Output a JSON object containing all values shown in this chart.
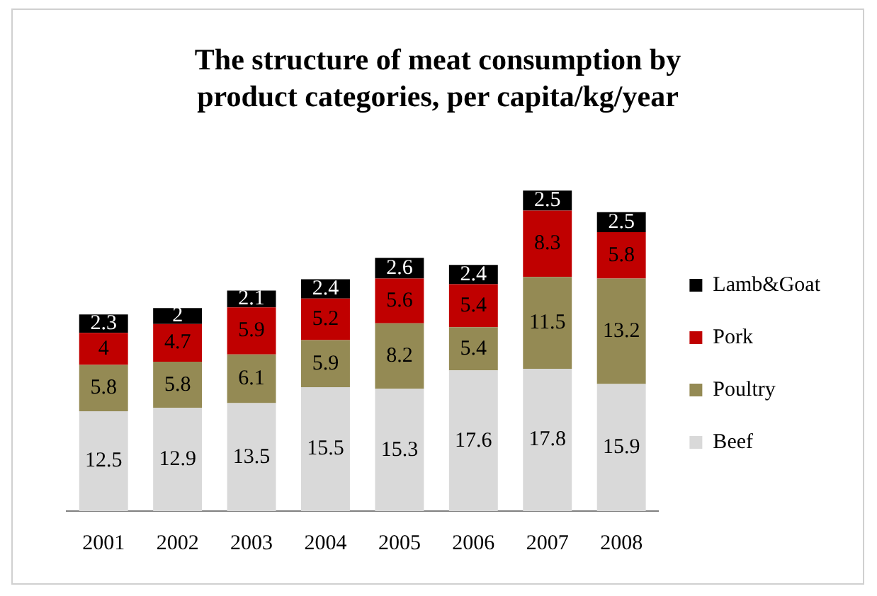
{
  "chart_data": {
    "type": "bar",
    "title": "The structure of meat consumption by product categories, per capita/kg/year",
    "categories": [
      "2001",
      "2002",
      "2003",
      "2004",
      "2005",
      "2006",
      "2007",
      "2008"
    ],
    "stacked": true,
    "data_labels": true,
    "legend": "right",
    "grid": false,
    "tick_labels": "x",
    "series": [
      {
        "name": "Beef",
        "color": "#d9d9d9",
        "values": [
          12.5,
          12.9,
          13.5,
          15.5,
          15.3,
          17.6,
          17.8,
          15.9
        ]
      },
      {
        "name": "Poultry",
        "color": "#948a54",
        "values": [
          5.8,
          5.8,
          6.1,
          5.9,
          8.2,
          5.4,
          11.5,
          13.2
        ]
      },
      {
        "name": "Pork",
        "color": "#c00000",
        "values": [
          4,
          4.7,
          5.9,
          5.2,
          5.6,
          5.4,
          8.3,
          5.8
        ]
      },
      {
        "name": "Lamb&Goat",
        "color": "#000000",
        "values": [
          2.3,
          2,
          2.1,
          2.4,
          2.6,
          2.4,
          2.5,
          2.5
        ]
      }
    ]
  }
}
